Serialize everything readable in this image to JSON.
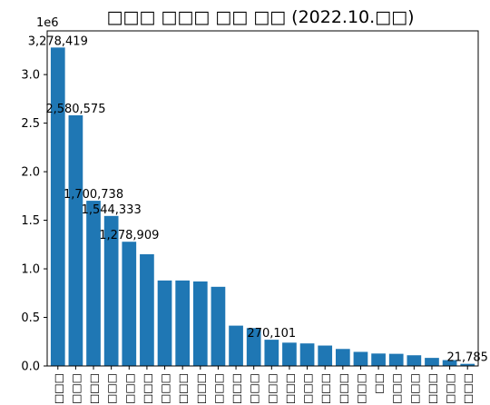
{
  "chart_data": {
    "type": "bar",
    "title": "□□□ □□□ □□ □□ (2022.10.□□)",
    "xlabel": "",
    "ylabel": "",
    "offset_text": "1e6",
    "ylim": [
      0,
      3450000
    ],
    "yticks": [
      0,
      500000,
      1000000,
      1500000,
      2000000,
      2500000,
      3000000
    ],
    "ytick_labels": [
      "0.0",
      "0.5",
      "1.0",
      "1.5",
      "2.0",
      "2.5",
      "3.0"
    ],
    "grid": false,
    "color": "#1f77b4",
    "categories": [
      "□□□",
      "□□□",
      "□□□□",
      "□□□",
      "□□□",
      "□□□",
      "□□□",
      "□□□",
      "□□□",
      "□□□",
      "□□□",
      "□□□",
      "□□□",
      "□□□",
      "□□□",
      "□□□",
      "□□□",
      "□□□",
      "□□",
      "□□□",
      "□□□□",
      "□□□□",
      "□□□",
      "□□□"
    ],
    "values": [
      3278419,
      2580575,
      1700738,
      1544333,
      1278909,
      1150000,
      880000,
      880000,
      870000,
      815000,
      415000,
      390000,
      270101,
      240000,
      232000,
      210000,
      175000,
      145000,
      128000,
      125000,
      110000,
      83000,
      60000,
      21785
    ],
    "data_labels": [
      {
        "index": 0,
        "text": "3,278,419"
      },
      {
        "index": 1,
        "text": "2,580,575"
      },
      {
        "index": 2,
        "text": "1,700,738"
      },
      {
        "index": 3,
        "text": "1,544,333"
      },
      {
        "index": 4,
        "text": "1,278,909"
      },
      {
        "index": 12,
        "text": "270,101"
      },
      {
        "index": 23,
        "text": "21,785"
      }
    ]
  }
}
